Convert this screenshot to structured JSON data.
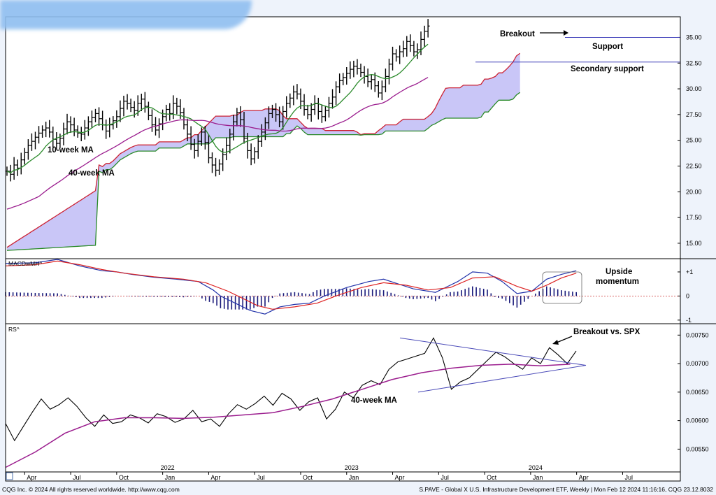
{
  "chart_data": [
    {
      "type": "line",
      "panel": "price",
      "instrument": "S.PAVE - Global X U.S. Infrastructure Development ETF, Weekly",
      "ylim": [
        13.5,
        37
      ],
      "y_ticks": [
        15.0,
        17.5,
        20.0,
        22.5,
        25.0,
        27.5,
        30.0,
        32.5,
        35.0
      ],
      "y_tick_labels": [
        "15.00",
        "17.50",
        "20.00",
        "22.50",
        "25.00",
        "27.50",
        "30.00",
        "32.50",
        "35.00"
      ],
      "x_tick_labels": [
        "Apr",
        "Jul",
        "Oct",
        "Jan",
        "Apr",
        "Jul",
        "Oct",
        "Jan",
        "Apr",
        "Jul",
        "Oct",
        "Jan",
        "Apr",
        "Jul"
      ],
      "x_tick_weeks": [
        5,
        18,
        31,
        44,
        57,
        70,
        83,
        96,
        109,
        122,
        135,
        148,
        161,
        174
      ],
      "year_labels": [
        "2022",
        "2023",
        "2024"
      ],
      "year_weeks": [
        44,
        96,
        148
      ],
      "weekly_close": [
        22.0,
        21.7,
        22.6,
        22.3,
        23.1,
        23.8,
        24.5,
        24.9,
        25.3,
        25.7,
        26.0,
        26.2,
        25.8,
        25.1,
        24.7,
        25.2,
        26.1,
        26.8,
        26.5,
        26.0,
        25.7,
        25.6,
        26.2,
        26.8,
        27.2,
        27.6,
        27.1,
        26.5,
        25.9,
        26.5,
        26.9,
        27.3,
        28.1,
        28.8,
        28.6,
        28.2,
        27.9,
        28.6,
        29.0,
        28.3,
        27.4,
        26.5,
        26.0,
        26.6,
        27.3,
        28.0,
        27.6,
        28.6,
        28.3,
        27.7,
        26.5,
        25.6,
        24.6,
        24.0,
        24.9,
        25.8,
        24.8,
        23.3,
        22.6,
        22.1,
        22.7,
        23.6,
        24.5,
        25.6,
        26.8,
        27.7,
        27.0,
        25.2,
        24.0,
        23.2,
        23.9,
        24.9,
        25.8,
        26.7,
        27.6,
        28.0,
        27.5,
        26.8,
        27.8,
        28.6,
        29.1,
        29.7,
        29.5,
        28.8,
        28.0,
        27.5,
        28.0,
        28.6,
        27.8,
        27.3,
        27.9,
        28.6,
        29.2,
        30.2,
        30.8,
        31.1,
        31.5,
        31.9,
        32.2,
        32.0,
        31.6,
        31.2,
        30.7,
        30.9,
        30.3,
        29.6,
        30.2,
        31.2,
        32.4,
        33.4,
        33.1,
        33.6,
        33.9,
        34.6,
        34.2,
        33.6,
        33.8,
        34.8,
        35.6,
        36.1
      ],
      "series": [
        {
          "name": "10-week MA",
          "color": "#2a8a2a"
        },
        {
          "name": "40-week MA",
          "color": "#9b1d8e"
        },
        {
          "name": "Cloud",
          "upper_color": "#cc2233",
          "lower_color": "#2a8a2a",
          "fill": "#c9c6f7"
        }
      ],
      "horizontal_lines": [
        {
          "label": "Support",
          "y": 35.0,
          "color": "#3b3bb8"
        },
        {
          "label": "Secondary support",
          "y": 32.6,
          "color": "#3b3bb8"
        }
      ],
      "annotations": [
        "Breakout",
        "Support",
        "Secondary support",
        "10-week MA",
        "40-week MA"
      ]
    },
    {
      "type": "line",
      "panel": "momentum",
      "name_label": "MACDwMH^",
      "y_tick_labels": [
        "+1",
        "0",
        "-1"
      ],
      "y_ticks": [
        1,
        0,
        -1
      ],
      "ylim": [
        -1.15,
        1.55
      ],
      "series": [
        {
          "color": "#2233aa"
        },
        {
          "color": "#dd2222"
        },
        {
          "type": "histogram",
          "color": "#1a1a7a"
        }
      ],
      "macd_points": [
        [
          0,
          1.35
        ],
        [
          8,
          1.38
        ],
        [
          14,
          1.52
        ],
        [
          20,
          1.25
        ],
        [
          26,
          1.05
        ],
        [
          30,
          1.0
        ],
        [
          34,
          0.9
        ],
        [
          40,
          0.78
        ],
        [
          46,
          0.7
        ],
        [
          52,
          0.6
        ],
        [
          56,
          0.25
        ],
        [
          58,
          0.0
        ],
        [
          62,
          -0.3
        ],
        [
          66,
          -0.6
        ],
        [
          70,
          -0.75
        ],
        [
          74,
          -0.45
        ],
        [
          78,
          -0.35
        ],
        [
          82,
          -0.3
        ],
        [
          86,
          0.0
        ],
        [
          92,
          0.35
        ],
        [
          98,
          0.6
        ],
        [
          102,
          0.7
        ],
        [
          106,
          0.5
        ],
        [
          110,
          0.3
        ],
        [
          116,
          0.15
        ],
        [
          122,
          0.6
        ],
        [
          126,
          1.0
        ],
        [
          130,
          0.95
        ],
        [
          134,
          0.6
        ],
        [
          138,
          0.1
        ],
        [
          142,
          0.2
        ],
        [
          146,
          0.7
        ],
        [
          150,
          0.9
        ],
        [
          154,
          1.05
        ]
      ],
      "signal_points": [
        [
          0,
          1.25
        ],
        [
          8,
          1.3
        ],
        [
          14,
          1.45
        ],
        [
          20,
          1.3
        ],
        [
          26,
          1.1
        ],
        [
          32,
          0.95
        ],
        [
          40,
          0.8
        ],
        [
          48,
          0.7
        ],
        [
          54,
          0.55
        ],
        [
          60,
          0.2
        ],
        [
          64,
          -0.1
        ],
        [
          68,
          -0.4
        ],
        [
          72,
          -0.55
        ],
        [
          78,
          -0.45
        ],
        [
          84,
          -0.3
        ],
        [
          90,
          0.05
        ],
        [
          96,
          0.35
        ],
        [
          102,
          0.55
        ],
        [
          108,
          0.45
        ],
        [
          114,
          0.25
        ],
        [
          120,
          0.35
        ],
        [
          126,
          0.75
        ],
        [
          132,
          0.8
        ],
        [
          138,
          0.4
        ],
        [
          142,
          0.2
        ],
        [
          146,
          0.45
        ],
        [
          150,
          0.75
        ],
        [
          154,
          0.95
        ]
      ],
      "annotations": [
        "Upside momentum"
      ]
    },
    {
      "type": "line",
      "panel": "relative_strength",
      "name_label": "RS^",
      "ylim": [
        0.0051,
        0.0077
      ],
      "y_ticks": [
        0.0055,
        0.006,
        0.0065,
        0.007,
        0.0075
      ],
      "y_tick_labels": [
        "0.00550",
        "0.00600",
        "0.00650",
        "0.00700",
        "0.00750"
      ],
      "rs_points": [
        [
          0,
          0.00595
        ],
        [
          3,
          0.00565
        ],
        [
          6,
          0.0059
        ],
        [
          9,
          0.00615
        ],
        [
          12,
          0.00638
        ],
        [
          15,
          0.0062
        ],
        [
          18,
          0.00628
        ],
        [
          21,
          0.0064
        ],
        [
          24,
          0.00625
        ],
        [
          27,
          0.00605
        ],
        [
          30,
          0.0059
        ],
        [
          33,
          0.0061
        ],
        [
          36,
          0.00595
        ],
        [
          39,
          0.00598
        ],
        [
          42,
          0.0061
        ],
        [
          45,
          0.00605
        ],
        [
          48,
          0.00596
        ],
        [
          51,
          0.00612
        ],
        [
          54,
          0.00607
        ],
        [
          57,
          0.00597
        ],
        [
          60,
          0.00603
        ],
        [
          63,
          0.00618
        ],
        [
          66,
          0.00598
        ],
        [
          69,
          0.00603
        ],
        [
          72,
          0.0059
        ],
        [
          75,
          0.00612
        ],
        [
          78,
          0.00628
        ],
        [
          81,
          0.0062
        ],
        [
          84,
          0.0063
        ],
        [
          87,
          0.00643
        ],
        [
          90,
          0.00627
        ],
        [
          93,
          0.00648
        ],
        [
          96,
          0.00638
        ],
        [
          99,
          0.00618
        ],
        [
          102,
          0.00633
        ],
        [
          105,
          0.0064
        ],
        [
          108,
          0.00603
        ],
        [
          111,
          0.0062
        ],
        [
          114,
          0.0065
        ],
        [
          117,
          0.0064
        ],
        [
          120,
          0.00662
        ],
        [
          123,
          0.0067
        ],
        [
          126,
          0.00663
        ],
        [
          129,
          0.0069
        ],
        [
          132,
          0.00703
        ],
        [
          135,
          0.00708
        ],
        [
          138,
          0.00713
        ],
        [
          141,
          0.00718
        ],
        [
          144,
          0.00745
        ],
        [
          147,
          0.0071
        ],
        [
          150,
          0.00655
        ],
        [
          153,
          0.00668
        ],
        [
          156,
          0.00675
        ],
        [
          159,
          0.0069
        ],
        [
          162,
          0.00705
        ],
        [
          165,
          0.0072
        ],
        [
          168,
          0.00712
        ],
        [
          171,
          0.007
        ],
        [
          174,
          0.0069
        ],
        [
          177,
          0.0071
        ],
        [
          180,
          0.007
        ],
        [
          183,
          0.00728
        ],
        [
          186,
          0.00715
        ],
        [
          189,
          0.007
        ],
        [
          192,
          0.00722
        ]
      ],
      "ma_points": [
        [
          0,
          0.00518
        ],
        [
          10,
          0.00545
        ],
        [
          20,
          0.00578
        ],
        [
          30,
          0.00598
        ],
        [
          40,
          0.00605
        ],
        [
          50,
          0.00605
        ],
        [
          60,
          0.00604
        ],
        [
          70,
          0.00606
        ],
        [
          80,
          0.0061
        ],
        [
          90,
          0.00614
        ],
        [
          100,
          0.00625
        ],
        [
          110,
          0.00638
        ],
        [
          120,
          0.00655
        ],
        [
          130,
          0.00672
        ],
        [
          140,
          0.00684
        ],
        [
          150,
          0.00692
        ],
        [
          160,
          0.00697
        ],
        [
          170,
          0.00699
        ],
        [
          180,
          0.00696
        ],
        [
          190,
          0.00699
        ]
      ],
      "series": [
        {
          "color": "#000000"
        },
        {
          "name": "40-week MA",
          "color": "#9b1d8e"
        }
      ],
      "annotations": [
        "Breakout vs. SPX",
        "40-week MA"
      ]
    }
  ],
  "footer": {
    "left": "CQG Inc. © 2024 All rights reserved worldwide. http://www.cqg.com",
    "right": "S.PAVE - Global X U.S. Infrastructure Development ETF, Weekly | Mon Feb 12 2024 11:16:16, CQG 23.12.8032"
  }
}
